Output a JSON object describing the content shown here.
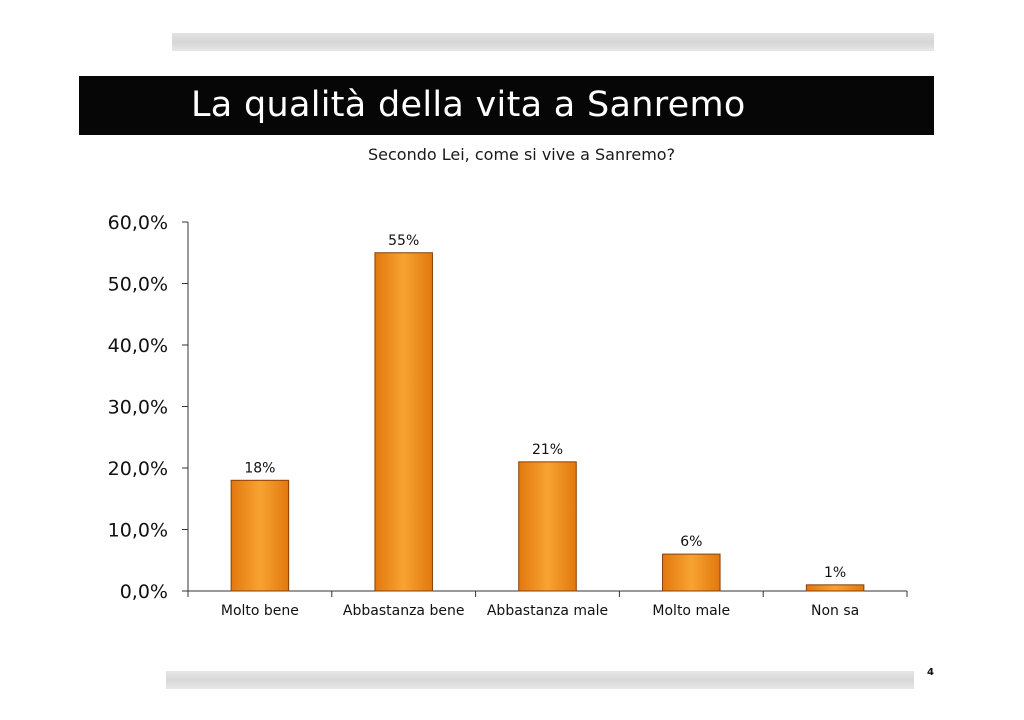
{
  "page": {
    "title": "La qualità della vita a Sanremo",
    "page_number": "4"
  },
  "colors": {
    "bar_fill_light": "#f7a331",
    "bar_fill_dark": "#e2780f",
    "bar_stroke": "#8a3d05",
    "title_bar": "#060606",
    "axis": "#333333"
  },
  "chart_data": {
    "type": "bar",
    "title": "Secondo Lei, come si vive a Sanremo?",
    "xlabel": "",
    "ylabel": "",
    "categories": [
      "Molto bene",
      "Abbastanza bene",
      "Abbastanza male",
      "Molto male",
      "Non sa"
    ],
    "values": [
      18,
      55,
      21,
      6,
      1
    ],
    "data_labels": [
      "18%",
      "55%",
      "21%",
      "6%",
      "1%"
    ],
    "ylim": [
      0,
      60
    ],
    "y_ticks": [
      0,
      10,
      20,
      30,
      40,
      50,
      60
    ],
    "y_tick_labels": [
      "0,0%",
      "10,0%",
      "20,0%",
      "30,0%",
      "40,0%",
      "50,0%",
      "60,0%"
    ],
    "grid": false,
    "legend": "none"
  }
}
